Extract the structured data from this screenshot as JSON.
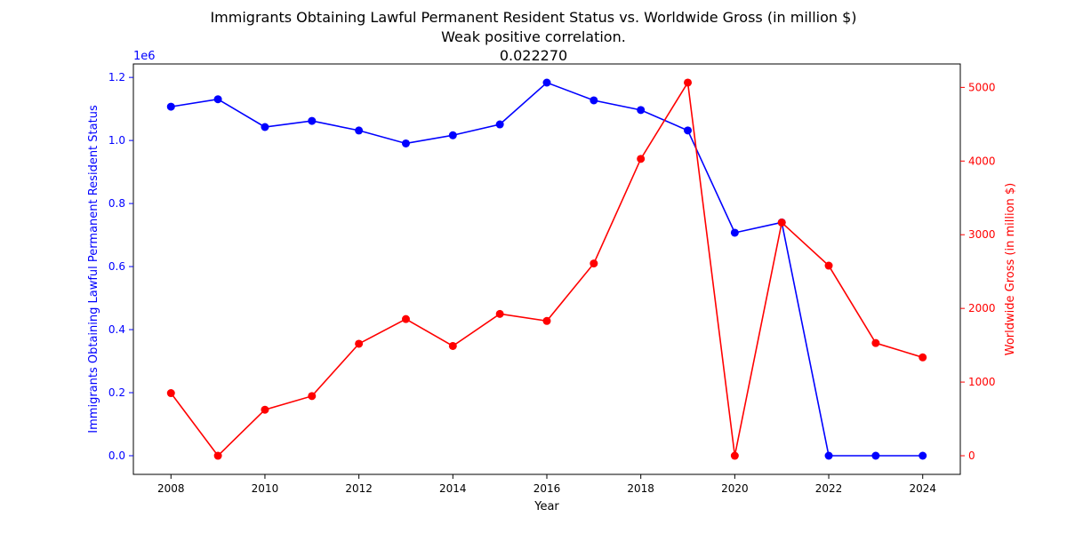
{
  "chart_data": {
    "type": "line",
    "title": "Immigrants Obtaining Lawful Permanent Resident Status vs. Worldwide Gross (in million $)",
    "subtitle": "Weak positive correlation.",
    "correlation_text": "0.022270",
    "xlabel": "Year",
    "x": [
      2008,
      2009,
      2010,
      2011,
      2012,
      2013,
      2014,
      2015,
      2016,
      2017,
      2018,
      2019,
      2020,
      2021,
      2022,
      2023,
      2024
    ],
    "xticks": [
      "2008",
      "2010",
      "2012",
      "2014",
      "2016",
      "2018",
      "2020",
      "2022",
      "2024"
    ],
    "xlim": [
      2007.2,
      2024.8
    ],
    "series": [
      {
        "name": "Immigrants Obtaining Lawful Permanent Resident Status",
        "axis": "left",
        "color": "#0000ff",
        "values": [
          1107126,
          1130818,
          1042625,
          1062040,
          1031631,
          990553,
          1016518,
          1051031,
          1183505,
          1127167,
          1096611,
          1031765,
          707362,
          740002,
          0,
          0,
          0
        ]
      },
      {
        "name": "Worldwide Gross (in million $)",
        "axis": "right",
        "color": "#ff0000",
        "values": [
          850,
          0,
          625,
          810,
          1520,
          1855,
          1490,
          1925,
          1830,
          2610,
          4030,
          5065,
          0,
          3165,
          2580,
          1530,
          1335
        ]
      }
    ],
    "y_left": {
      "label": "Immigrants Obtaining Lawful Permanent Resident Status",
      "ticks": [
        "0.0",
        "0.2",
        "0.4",
        "0.6",
        "0.8",
        "1.0",
        "1.2"
      ],
      "tick_values": [
        0,
        200000,
        400000,
        600000,
        800000,
        1000000,
        1200000
      ],
      "offset_text": "1e6",
      "ylim": [
        -59175,
        1242680
      ]
    },
    "y_right": {
      "label": "Worldwide Gross (in million $)",
      "ticks": [
        "0",
        "1000",
        "2000",
        "3000",
        "4000",
        "5000"
      ],
      "tick_values": [
        0,
        1000,
        2000,
        3000,
        4000,
        5000
      ],
      "ylim": [
        -253,
        5318
      ]
    },
    "grid": false,
    "legend": "none"
  }
}
